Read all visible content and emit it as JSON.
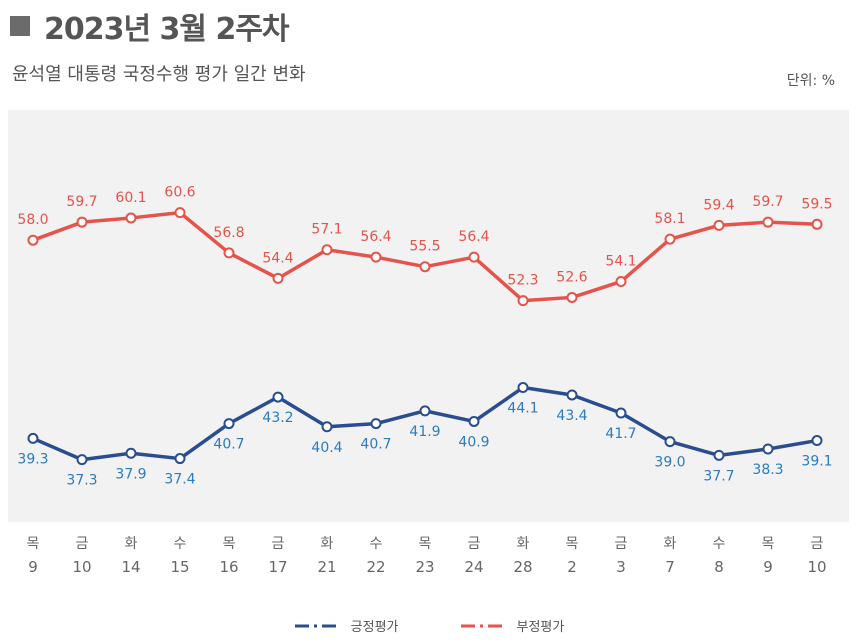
{
  "header": {
    "title": "2023년 3월 2주차",
    "subtitle": "윤석열 대통령 국정수행 평가 일간 변화",
    "unit": "단위: %"
  },
  "chart_data": {
    "type": "line",
    "weekdays": [
      "목",
      "금",
      "화",
      "수",
      "목",
      "금",
      "화",
      "수",
      "목",
      "금",
      "화",
      "목",
      "금",
      "화",
      "수",
      "목",
      "금"
    ],
    "days": [
      "9",
      "10",
      "14",
      "15",
      "16",
      "17",
      "21",
      "22",
      "23",
      "24",
      "28",
      "2",
      "3",
      "7",
      "8",
      "9",
      "10"
    ],
    "series": [
      {
        "name": "긍정평가",
        "color": "#2a4d8f",
        "label_color": "#2a7bbf",
        "values": [
          39.3,
          37.3,
          37.9,
          37.4,
          40.7,
          43.2,
          40.4,
          40.7,
          41.9,
          40.9,
          44.1,
          43.4,
          41.7,
          39.0,
          37.7,
          38.3,
          39.1
        ]
      },
      {
        "name": "부정평가",
        "color": "#e5534b",
        "label_color": "#e5534b",
        "values": [
          58.0,
          59.7,
          60.1,
          60.6,
          56.8,
          54.4,
          57.1,
          56.4,
          55.5,
          56.4,
          52.3,
          52.6,
          54.1,
          58.1,
          59.4,
          59.7,
          59.5
        ]
      }
    ],
    "legend_position": "bottom"
  }
}
